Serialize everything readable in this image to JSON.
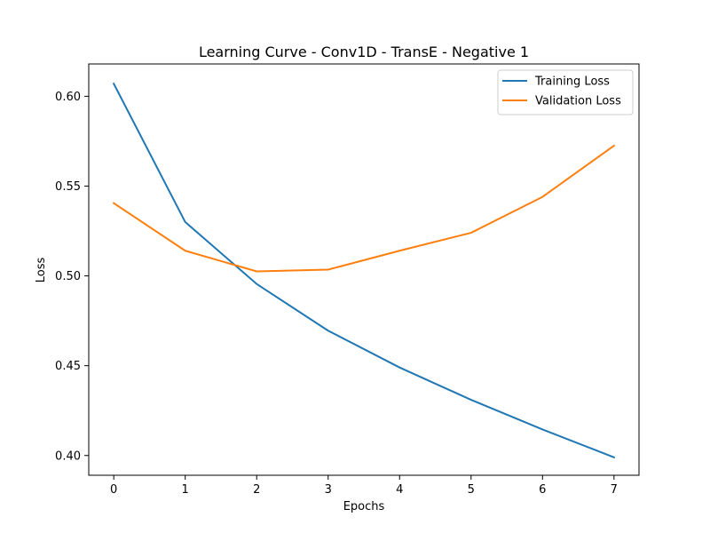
{
  "chart_data": {
    "type": "line",
    "title": "Learning Curve - Conv1D - TransE - Negative 1",
    "xlabel": "Epochs",
    "ylabel": "Loss",
    "x": [
      0,
      1,
      2,
      3,
      4,
      5,
      6,
      7
    ],
    "xticks": [
      "0",
      "1",
      "2",
      "3",
      "4",
      "5",
      "6",
      "7"
    ],
    "yticks": [
      "0.40",
      "0.45",
      "0.50",
      "0.55",
      "0.60"
    ],
    "xlim": [
      -0.35,
      7.35
    ],
    "ylim": [
      0.389,
      0.618
    ],
    "grid": false,
    "legend_position": "top-right",
    "series": [
      {
        "name": "Training Loss",
        "color": "#1f77b4",
        "values": [
          0.607,
          0.53,
          0.4955,
          0.4695,
          0.449,
          0.431,
          0.4145,
          0.399
        ]
      },
      {
        "name": "Validation Loss",
        "color": "#ff7f0e",
        "values": [
          0.5405,
          0.514,
          0.5025,
          0.5035,
          0.514,
          0.524,
          0.544,
          0.5725
        ]
      }
    ]
  }
}
